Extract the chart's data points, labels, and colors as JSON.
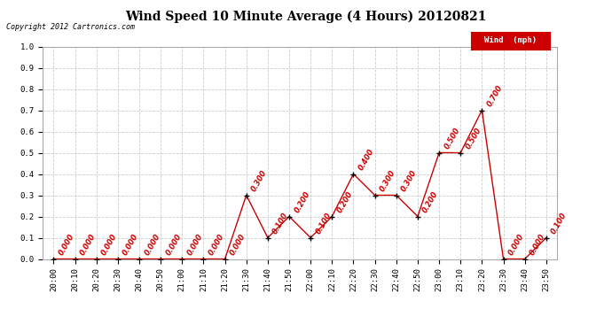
{
  "title": "Wind Speed 10 Minute Average (4 Hours) 20120821",
  "copyright": "Copyright 2012 Cartronics.com",
  "legend_label": "Wind  (mph)",
  "legend_bg": "#cc0000",
  "legend_text_color": "#ffffff",
  "x_labels": [
    "20:00",
    "20:10",
    "20:20",
    "20:30",
    "20:40",
    "20:50",
    "21:00",
    "21:10",
    "21:20",
    "21:30",
    "21:40",
    "21:50",
    "22:00",
    "22:10",
    "22:20",
    "22:30",
    "22:40",
    "22:50",
    "23:00",
    "23:10",
    "23:20",
    "23:30",
    "23:40",
    "23:50"
  ],
  "y_values": [
    0.0,
    0.0,
    0.0,
    0.0,
    0.0,
    0.0,
    0.0,
    0.0,
    0.0,
    0.3,
    0.1,
    0.2,
    0.1,
    0.2,
    0.4,
    0.3,
    0.3,
    0.2,
    0.5,
    0.5,
    0.7,
    0.0,
    0.0,
    0.1
  ],
  "line_color": "#cc0000",
  "marker_color": "#000000",
  "label_color": "#cc0000",
  "ylim": [
    0.0,
    1.0
  ],
  "yticks": [
    0.0,
    0.1,
    0.2,
    0.3,
    0.4,
    0.5,
    0.6,
    0.7,
    0.8,
    0.9,
    1.0
  ],
  "bg_color": "#ffffff",
  "grid_color": "#cccccc",
  "title_fontsize": 10,
  "label_fontsize": 6,
  "tick_fontsize": 6.5
}
